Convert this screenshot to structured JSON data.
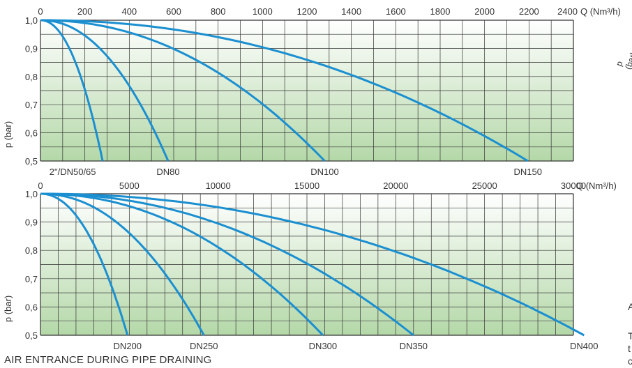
{
  "caption": "AIR ENTRANCE DURING PIPE DRAINING",
  "edge_text": {
    "right_rot": "p (bar)",
    "a": "A",
    "t1": "T",
    "t2": "t",
    "c": "c"
  },
  "colors": {
    "curve": "#1b8fd0",
    "fill_top": "#ffffff",
    "fill_bottom": "#b4d8a8",
    "grid": "#333333",
    "text": "#333333"
  },
  "chart_data": [
    {
      "type": "line",
      "xlabel": "Q (Nm³/h)",
      "ylabel": "p (bar)",
      "xlim": [
        0,
        2400
      ],
      "ylim": [
        0.5,
        1.0
      ],
      "x_ticks": [
        "0",
        "200",
        "400",
        "600",
        "800",
        "1000",
        "1200",
        "1400",
        "1600",
        "1800",
        "2000",
        "2200",
        "2400"
      ],
      "y_ticks": [
        "1,0",
        "0,9",
        "0,8",
        "0,7",
        "0,6",
        "0,5"
      ],
      "grid": true,
      "series": [
        {
          "name": "2\"/DN50/65",
          "max_flow": 280
        },
        {
          "name": "DN80",
          "max_flow": 575
        },
        {
          "name": "DN100",
          "max_flow": 1280
        },
        {
          "name": "DN150",
          "max_flow": 2195
        }
      ]
    },
    {
      "type": "line",
      "xlabel": "Q (Nm³/h)",
      "ylabel": "p (bar)",
      "xlim": [
        0,
        30000
      ],
      "ylim": [
        0.5,
        1.0
      ],
      "x_ticks": [
        "0",
        "5000",
        "10000",
        "15000",
        "20000",
        "25000",
        "30000"
      ],
      "y_ticks": [
        "1,0",
        "0,9",
        "0,8",
        "0,7",
        "0,6",
        "0,5"
      ],
      "grid": true,
      "series": [
        {
          "name": "DN200",
          "max_flow": 4900
        },
        {
          "name": "DN250",
          "max_flow": 9200
        },
        {
          "name": "DN300",
          "max_flow": 15900
        },
        {
          "name": "DN350",
          "max_flow": 21000
        },
        {
          "name": "DN400",
          "max_flow": 30600
        }
      ]
    }
  ]
}
